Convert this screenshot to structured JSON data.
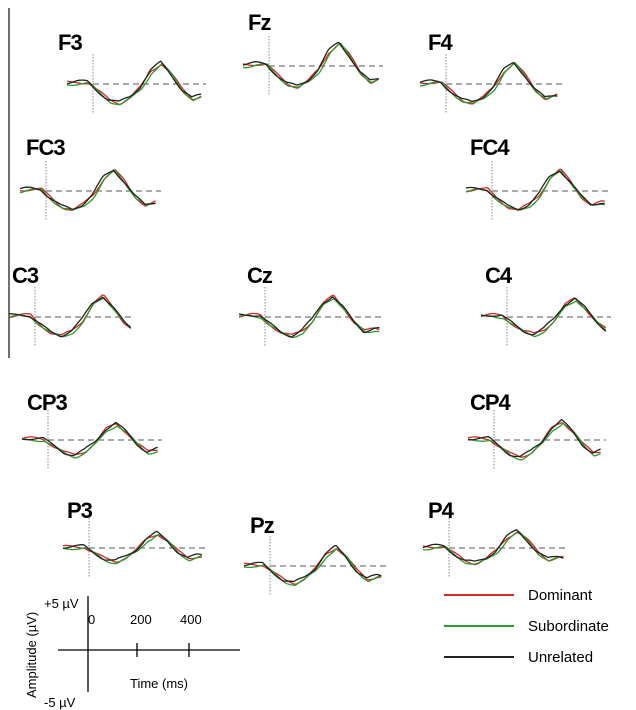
{
  "chart_data": {
    "type": "line",
    "title": "",
    "electrodes": [
      {
        "name": "F3",
        "shift": 0,
        "amp": 1.0
      },
      {
        "name": "Fz",
        "shift": -8,
        "amp": 1.1
      },
      {
        "name": "F4",
        "shift": 0,
        "amp": 1.0
      },
      {
        "name": "FC3",
        "shift": 0,
        "amp": 1.0
      },
      {
        "name": "FC4",
        "shift": 0,
        "amp": 1.0
      },
      {
        "name": "C3",
        "shift": 0,
        "amp": 1.0
      },
      {
        "name": "Cz",
        "shift": 0,
        "amp": 1.0
      },
      {
        "name": "C4",
        "shift": 0,
        "amp": 0.9
      },
      {
        "name": "CP3",
        "shift": 0,
        "amp": 0.8
      },
      {
        "name": "CP4",
        "shift": 0,
        "amp": 0.9
      },
      {
        "name": "P3",
        "shift": 0,
        "amp": 0.7
      },
      {
        "name": "Pz",
        "shift": 8,
        "amp": 0.9
      },
      {
        "name": "P4",
        "shift": 0,
        "amp": 0.8
      }
    ],
    "series": [
      {
        "name": "Dominant",
        "color": "#d42a2a",
        "offset": 0.05,
        "lag": 3
      },
      {
        "name": "Subordinate",
        "color": "#2d9a2d",
        "offset": -0.25,
        "lag": 6
      },
      {
        "name": "Unrelated",
        "color": "#222222",
        "offset": 0.15,
        "lag": 0
      }
    ],
    "waveform_ms": [
      -100,
      -60,
      -20,
      0,
      30,
      60,
      100,
      140,
      180,
      220,
      260,
      300,
      340,
      380,
      420,
      460,
      500,
      540,
      580,
      620,
      660,
      700
    ],
    "waveform_uv": [
      0.2,
      0.4,
      0.3,
      -0.8,
      -2.2,
      -3.5,
      -4.2,
      -3.0,
      -0.8,
      2.8,
      4.5,
      2.0,
      -1.2,
      -3.2,
      -2.5,
      -2.8,
      -2.0,
      -1.5,
      -1.8,
      -0.8,
      -0.6,
      -0.2
    ],
    "scale": {
      "ylabel": "Amplitude (µV)",
      "xlabel": "Time (ms)",
      "y_top": "+5 µV",
      "y_bottom": "-5 µV",
      "x_ticks": [
        "0",
        "200",
        "400"
      ]
    },
    "legend_position": "bottom-right"
  }
}
